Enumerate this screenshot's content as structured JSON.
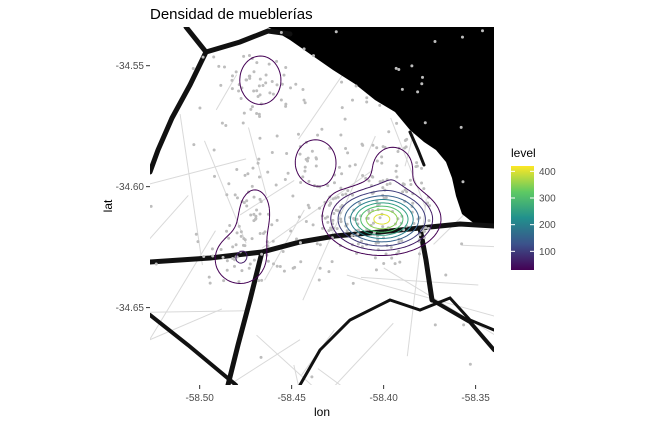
{
  "chart_data": {
    "type": "heatmap",
    "title": "Densidad de mueblerías",
    "xlabel": "lon",
    "ylabel": "lat",
    "xlim": [
      -58.527,
      -58.34
    ],
    "ylim": [
      -34.682,
      -34.534
    ],
    "x_ticks": [
      {
        "value": -58.5,
        "label": "-58.50"
      },
      {
        "value": -58.45,
        "label": "-58.45"
      },
      {
        "value": -58.4,
        "label": "-58.40"
      },
      {
        "value": -58.35,
        "label": "-58.35"
      }
    ],
    "y_ticks": [
      {
        "value": -34.55,
        "label": "-34.55"
      },
      {
        "value": -34.6,
        "label": "-34.60"
      },
      {
        "value": -34.65,
        "label": "-34.65"
      }
    ],
    "legend": {
      "title": "level",
      "position": "right",
      "range": [
        30,
        420
      ],
      "ticks": [
        {
          "value": 100,
          "label": "100"
        },
        {
          "value": 200,
          "label": "200"
        },
        {
          "value": 300,
          "label": "300"
        },
        {
          "value": 400,
          "label": "400"
        }
      ],
      "colormap": "viridis",
      "colors": [
        "#440154",
        "#3b528b",
        "#21908d",
        "#5dc963",
        "#fde725"
      ]
    },
    "density_peaks": [
      {
        "lon": -58.401,
        "lat": -34.6135,
        "amplitude": 420,
        "sx": 0.014,
        "sy": 0.0065
      },
      {
        "lon": -58.467,
        "lat": -34.556,
        "amplitude": 60,
        "sx": 0.0095,
        "sy": 0.0085
      },
      {
        "lon": -58.437,
        "lat": -34.59,
        "amplitude": 55,
        "sx": 0.01,
        "sy": 0.0085
      },
      {
        "lon": -58.47,
        "lat": -34.61,
        "amplitude": 50,
        "sx": 0.0075,
        "sy": 0.0085
      },
      {
        "lon": -58.478,
        "lat": -34.63,
        "amplitude": 60,
        "sx": 0.0115,
        "sy": 0.0085
      },
      {
        "lon": -58.395,
        "lat": -34.592,
        "amplitude": 55,
        "sx": 0.0095,
        "sy": 0.0075
      }
    ],
    "contour_levels": [
      30,
      60,
      100,
      150,
      200,
      250,
      300,
      350,
      400
    ],
    "basemap": {
      "background": "#ffffff",
      "water_color": "#000000",
      "major_road_color": "#111111",
      "minor_road_color": "#d9d9d9",
      "points_color": "#bdbdbd"
    }
  }
}
